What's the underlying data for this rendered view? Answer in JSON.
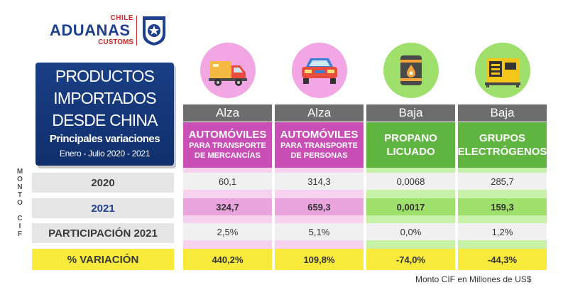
{
  "logo": {
    "chile": "CHILE",
    "aduanas": "ADUANAS",
    "customs": "CUSTOMS"
  },
  "title": {
    "line1": "PRODUCTOS",
    "line2": "IMPORTADOS",
    "line3": "DESDE CHINA",
    "subtitle": "Principales variaciones",
    "period": "Enero - Julio  2020 - 2021"
  },
  "side_label": "MONTO CIF",
  "rows": {
    "y2020": "2020",
    "y2021": "2021",
    "participacion": "PARTICIPACIÓN 2021",
    "variacion": "% VARIACIÓN"
  },
  "columns": [
    {
      "trend": "Alza",
      "name": "AUTOMÓVILES",
      "sub1": "PARA TRANSPORTE",
      "sub2": "DE MERCANCÍAS",
      "v2020": "60,1",
      "v2021": "324,7",
      "participacion": "2,5%",
      "variacion": "440,2%",
      "icon": "truck-icon"
    },
    {
      "trend": "Alza",
      "name": "AUTOMÓVILES",
      "sub1": "PARA TRANSPORTE",
      "sub2": "DE PERSONAS",
      "v2020": "314,3",
      "v2021": "659,3",
      "participacion": "5,1%",
      "variacion": "109,8%",
      "icon": "car-icon"
    },
    {
      "trend": "Baja",
      "name": "PROPANO",
      "sub1": "LICUADO",
      "sub2": "",
      "v2020": "0,0068",
      "v2021": "0,0017",
      "participacion": "0,0%",
      "variacion": "-74,0%",
      "icon": "gas-barrel-icon"
    },
    {
      "trend": "Baja",
      "name": "GRUPOS",
      "sub1": "ELECTRÓGENOS",
      "sub2": "",
      "v2020": "285,7",
      "v2021": "159,3",
      "participacion": "1,2%",
      "variacion": "-44,3%",
      "icon": "generator-icon"
    }
  ],
  "footer": "Monto CIF en Millones de US$",
  "colors": {
    "navy": "#1a3f86",
    "magenta": "#c94fb6",
    "green": "#5fb53f",
    "yellow": "#f7ea3a",
    "header_gray": "#6d6d6d"
  }
}
